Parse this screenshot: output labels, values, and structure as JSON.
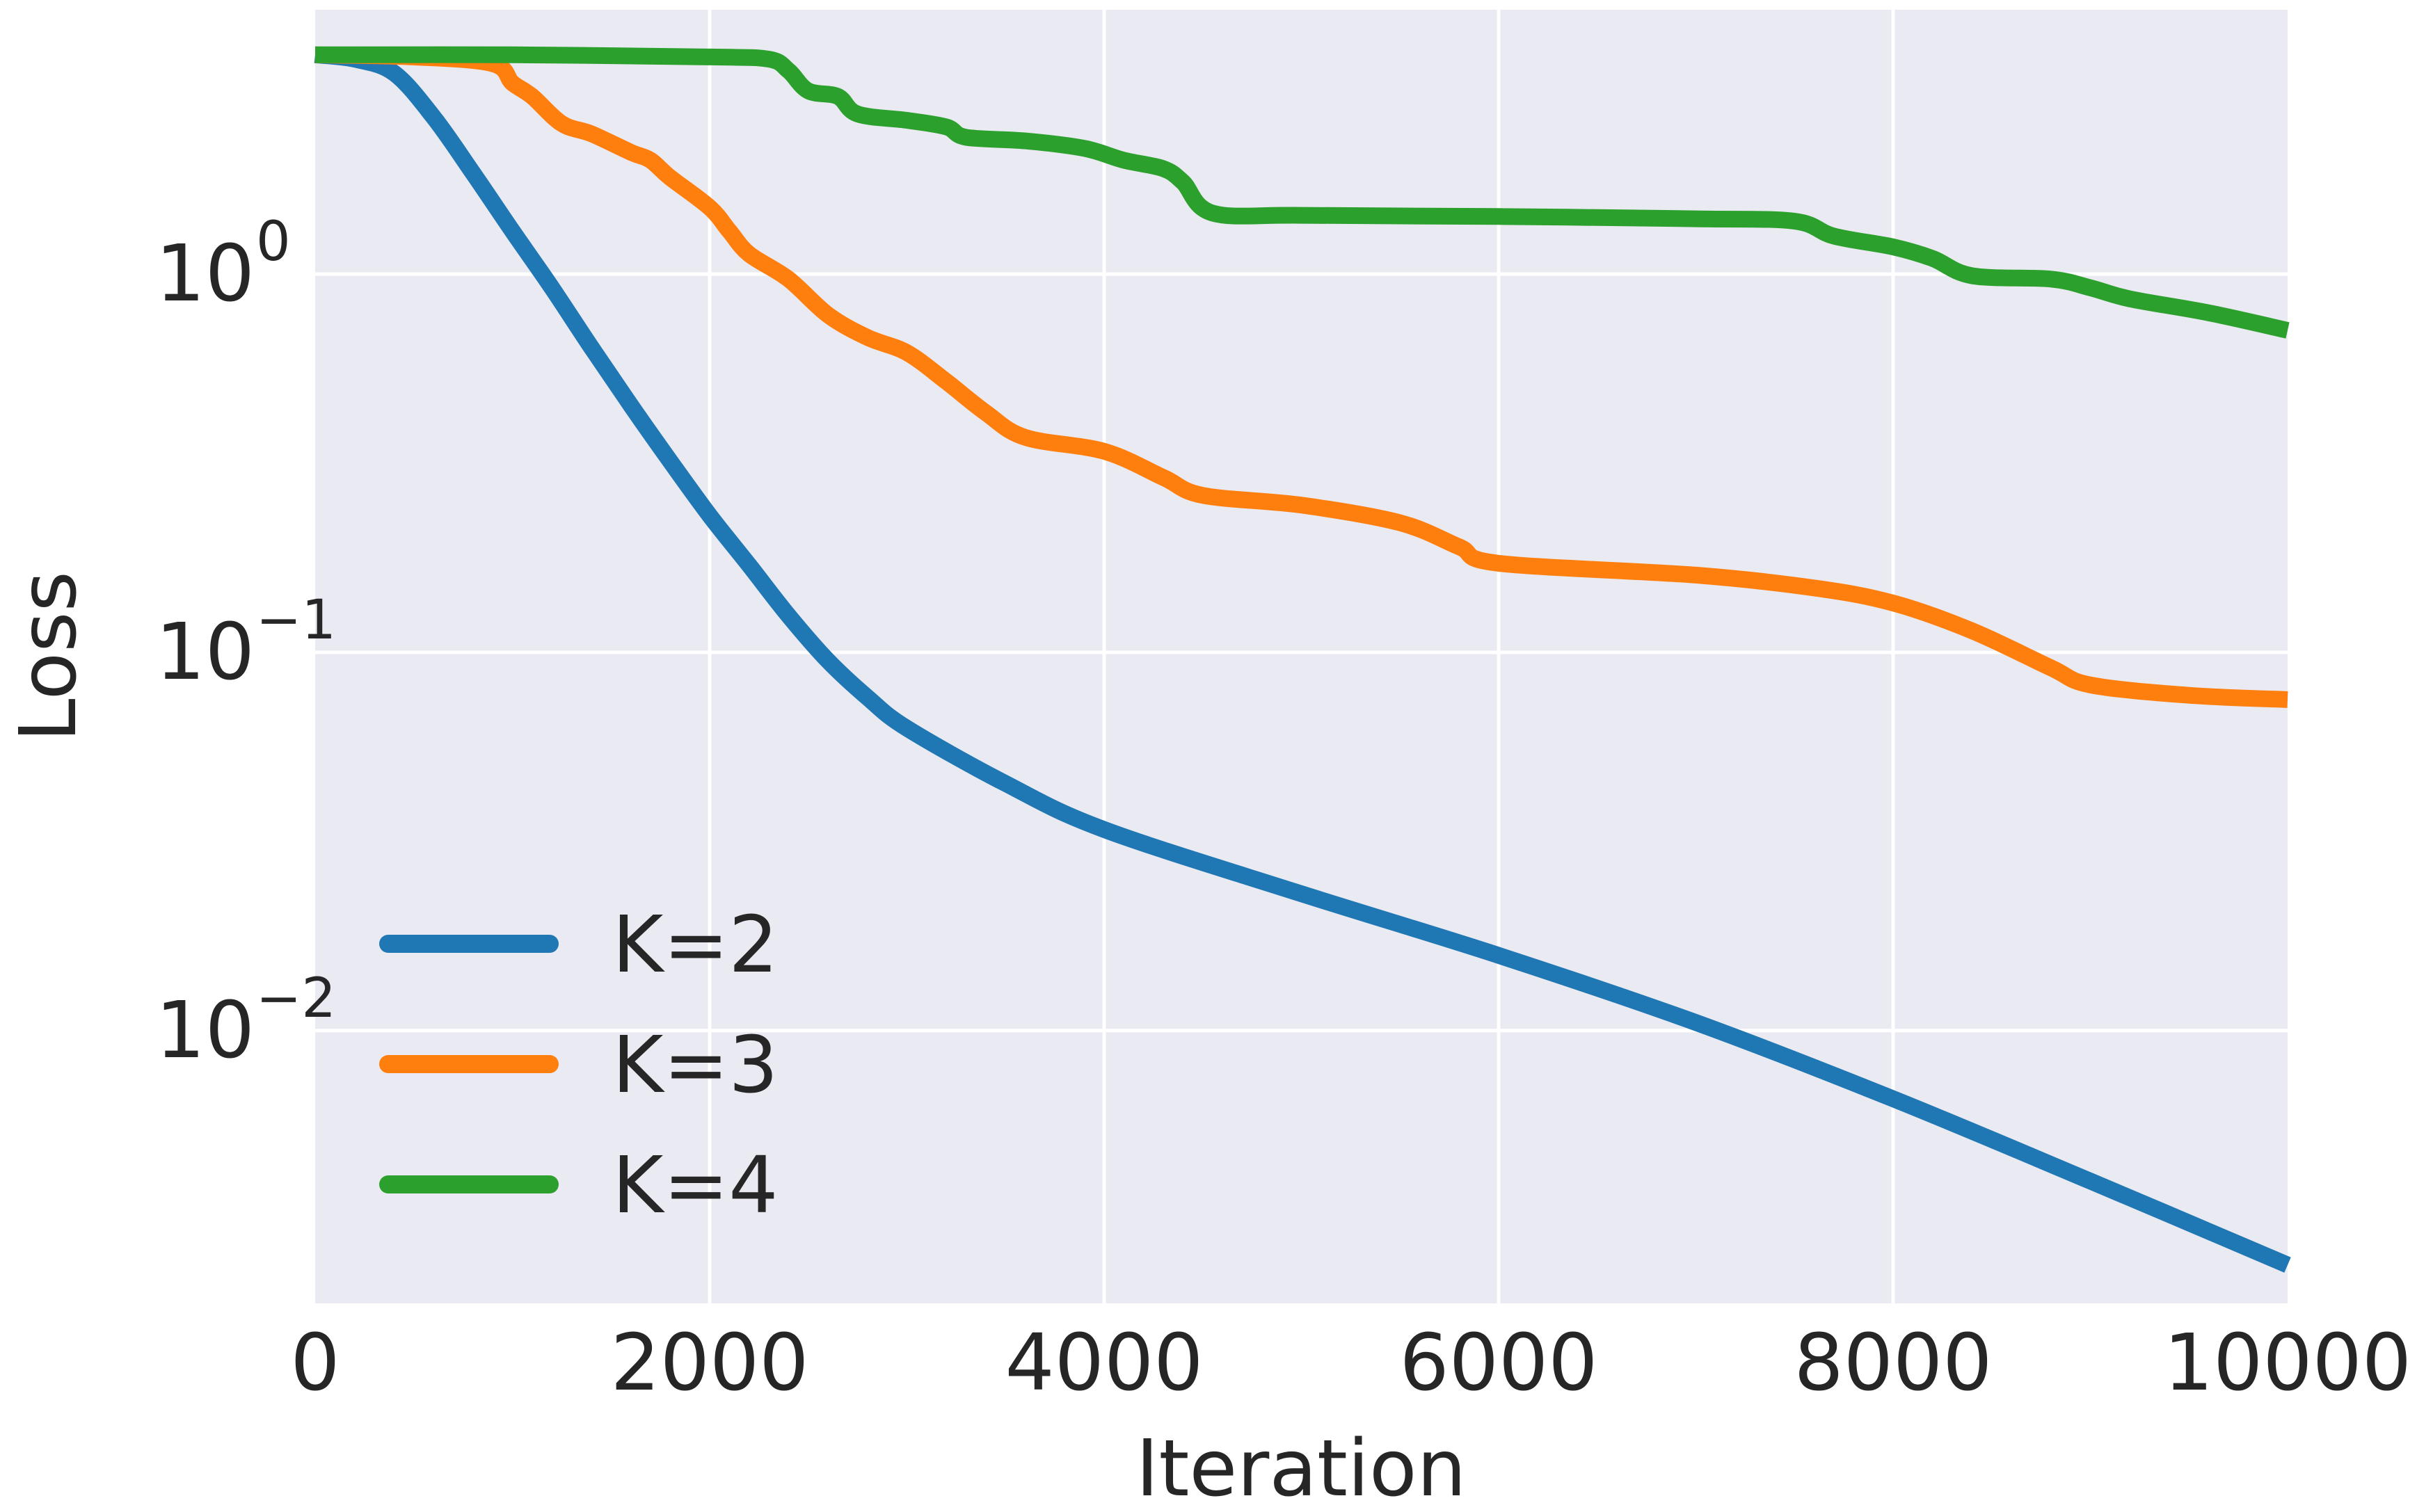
{
  "chart_data": {
    "type": "line",
    "title": "",
    "xlabel": "Iteration",
    "ylabel": "Loss",
    "xlim": [
      0,
      10000
    ],
    "ylim": [
      0.0019,
      5.0
    ],
    "yscale": "log",
    "grid": true,
    "legend_position": "lower-left",
    "x_ticks": [
      0,
      2000,
      4000,
      6000,
      8000,
      10000
    ],
    "x_tick_labels": [
      "0",
      "2000",
      "4000",
      "6000",
      "8000",
      "10000"
    ],
    "y_ticks": [
      {
        "value": 1.0,
        "base": "10",
        "exp": "0"
      },
      {
        "value": 0.1,
        "base": "10",
        "exp": "−1"
      },
      {
        "value": 0.01,
        "base": "10",
        "exp": "−2"
      }
    ],
    "colors": {
      "background": "#EAEAF2",
      "grid": "#FFFFFF",
      "text": "#262626"
    },
    "series": [
      {
        "name": "K=2",
        "color": "#1F77B4",
        "points": [
          [
            0,
            3.8
          ],
          [
            200,
            3.7
          ],
          [
            400,
            3.4
          ],
          [
            600,
            2.6
          ],
          [
            800,
            1.85
          ],
          [
            1000,
            1.3
          ],
          [
            1200,
            0.92
          ],
          [
            1400,
            0.64
          ],
          [
            1600,
            0.45
          ],
          [
            1800,
            0.32
          ],
          [
            2000,
            0.23
          ],
          [
            2200,
            0.17
          ],
          [
            2400,
            0.125
          ],
          [
            2600,
            0.095
          ],
          [
            2800,
            0.076
          ],
          [
            3000,
            0.063
          ],
          [
            3500,
            0.045
          ],
          [
            4000,
            0.034
          ],
          [
            5000,
            0.023
          ],
          [
            6000,
            0.0158
          ],
          [
            7000,
            0.0105
          ],
          [
            8000,
            0.0066
          ],
          [
            9000,
            0.004
          ],
          [
            10000,
            0.0024
          ]
        ]
      },
      {
        "name": "K=3",
        "color": "#FF7F0E",
        "points": [
          [
            0,
            3.8
          ],
          [
            500,
            3.75
          ],
          [
            900,
            3.6
          ],
          [
            1000,
            3.2
          ],
          [
            1100,
            2.95
          ],
          [
            1250,
            2.5
          ],
          [
            1400,
            2.35
          ],
          [
            1600,
            2.1
          ],
          [
            1700,
            2.0
          ],
          [
            1800,
            1.8
          ],
          [
            2000,
            1.5
          ],
          [
            2100,
            1.3
          ],
          [
            2200,
            1.13
          ],
          [
            2400,
            0.97
          ],
          [
            2600,
            0.78
          ],
          [
            2800,
            0.68
          ],
          [
            3000,
            0.62
          ],
          [
            3200,
            0.52
          ],
          [
            3400,
            0.43
          ],
          [
            3600,
            0.37
          ],
          [
            4000,
            0.34
          ],
          [
            4300,
            0.29
          ],
          [
            4500,
            0.26
          ],
          [
            5000,
            0.245
          ],
          [
            5500,
            0.22
          ],
          [
            5800,
            0.19
          ],
          [
            6000,
            0.172
          ],
          [
            7000,
            0.16
          ],
          [
            7600,
            0.148
          ],
          [
            8000,
            0.135
          ],
          [
            8400,
            0.114
          ],
          [
            8800,
            0.091
          ],
          [
            9000,
            0.082
          ],
          [
            9500,
            0.077
          ],
          [
            10000,
            0.075
          ]
        ]
      },
      {
        "name": "K=4",
        "color": "#2CA02C",
        "points": [
          [
            0,
            3.8
          ],
          [
            1000,
            3.8
          ],
          [
            2000,
            3.75
          ],
          [
            2300,
            3.7
          ],
          [
            2400,
            3.45
          ],
          [
            2500,
            3.05
          ],
          [
            2650,
            2.95
          ],
          [
            2750,
            2.65
          ],
          [
            3000,
            2.55
          ],
          [
            3200,
            2.45
          ],
          [
            3300,
            2.3
          ],
          [
            3600,
            2.25
          ],
          [
            3900,
            2.15
          ],
          [
            4100,
            2.0
          ],
          [
            4300,
            1.9
          ],
          [
            4400,
            1.75
          ],
          [
            4550,
            1.45
          ],
          [
            5000,
            1.43
          ],
          [
            6000,
            1.42
          ],
          [
            7000,
            1.4
          ],
          [
            7500,
            1.38
          ],
          [
            7700,
            1.26
          ],
          [
            8000,
            1.18
          ],
          [
            8200,
            1.1
          ],
          [
            8400,
            0.99
          ],
          [
            8800,
            0.97
          ],
          [
            9000,
            0.92
          ],
          [
            9200,
            0.86
          ],
          [
            9600,
            0.79
          ],
          [
            10000,
            0.71
          ]
        ]
      }
    ]
  }
}
